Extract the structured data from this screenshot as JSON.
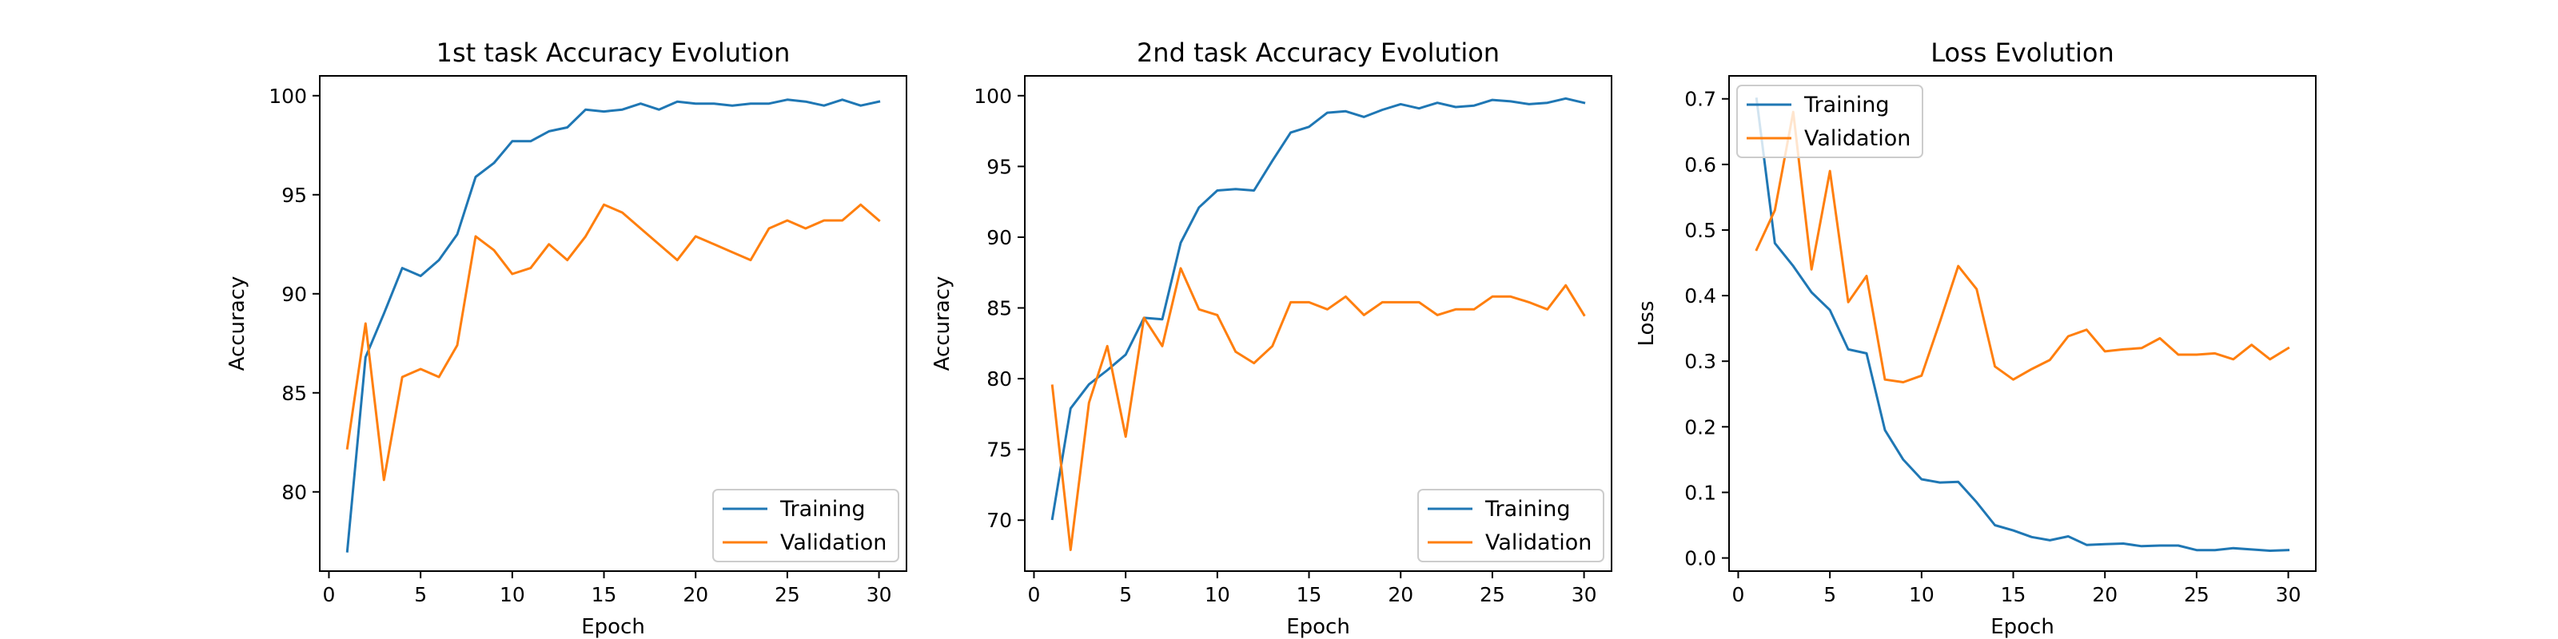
{
  "colors": {
    "training": "#1f77b4",
    "validation": "#ff7f0e"
  },
  "chart_data": [
    {
      "type": "line",
      "title": "1st task Accuracy Evolution",
      "xlabel": "Epoch",
      "ylabel": "Accuracy",
      "xlim": [
        -0.5,
        31.5
      ],
      "ylim": [
        76.0,
        101.0
      ],
      "xticks": [
        0,
        5,
        10,
        15,
        20,
        25,
        30
      ],
      "yticks": [
        80,
        85,
        90,
        95,
        100
      ],
      "legend": "lower right",
      "x": [
        1,
        2,
        3,
        4,
        5,
        6,
        7,
        8,
        9,
        10,
        11,
        12,
        13,
        14,
        15,
        16,
        17,
        18,
        19,
        20,
        21,
        22,
        23,
        24,
        25,
        26,
        27,
        28,
        29,
        30
      ],
      "series": [
        {
          "name": "Training",
          "values": [
            77.0,
            86.8,
            89.0,
            91.3,
            90.9,
            91.7,
            93.0,
            95.9,
            96.6,
            97.7,
            97.7,
            98.2,
            98.4,
            99.3,
            99.2,
            99.3,
            99.6,
            99.3,
            99.7,
            99.6,
            99.6,
            99.5,
            99.6,
            99.6,
            99.8,
            99.7,
            99.5,
            99.8,
            99.5,
            99.7
          ]
        },
        {
          "name": "Validation",
          "values": [
            82.2,
            88.5,
            80.6,
            85.8,
            86.2,
            85.8,
            87.4,
            92.9,
            92.2,
            91.0,
            91.3,
            92.5,
            91.7,
            92.9,
            94.5,
            94.1,
            93.3,
            92.5,
            91.7,
            92.9,
            92.5,
            92.1,
            91.7,
            93.3,
            93.7,
            93.3,
            93.7,
            93.7,
            94.5,
            93.7
          ]
        }
      ]
    },
    {
      "type": "line",
      "title": "2nd task Accuracy Evolution",
      "xlabel": "Epoch",
      "ylabel": "Accuracy",
      "xlim": [
        -0.5,
        31.5
      ],
      "ylim": [
        66.4,
        101.4
      ],
      "xticks": [
        0,
        5,
        10,
        15,
        20,
        25,
        30
      ],
      "yticks": [
        70,
        75,
        80,
        85,
        90,
        95,
        100
      ],
      "legend": "lower right",
      "x": [
        1,
        2,
        3,
        4,
        5,
        6,
        7,
        8,
        9,
        10,
        11,
        12,
        13,
        14,
        15,
        16,
        17,
        18,
        19,
        20,
        21,
        22,
        23,
        24,
        25,
        26,
        27,
        28,
        29,
        30
      ],
      "series": [
        {
          "name": "Training",
          "values": [
            70.1,
            77.9,
            79.6,
            80.6,
            81.7,
            84.3,
            84.2,
            89.6,
            92.1,
            93.3,
            93.4,
            93.3,
            95.4,
            97.4,
            97.8,
            98.8,
            98.9,
            98.5,
            99.0,
            99.4,
            99.1,
            99.5,
            99.2,
            99.3,
            99.7,
            99.6,
            99.4,
            99.5,
            99.8,
            99.5
          ]
        },
        {
          "name": "Validation",
          "values": [
            79.5,
            67.9,
            78.3,
            82.3,
            75.9,
            84.3,
            82.3,
            87.8,
            84.9,
            84.5,
            81.9,
            81.1,
            82.3,
            85.4,
            85.4,
            84.9,
            85.8,
            84.5,
            85.4,
            85.4,
            85.4,
            84.5,
            84.9,
            84.9,
            85.8,
            85.8,
            85.4,
            84.9,
            86.6,
            84.5
          ]
        }
      ]
    },
    {
      "type": "line",
      "title": "Loss Evolution",
      "xlabel": "Epoch",
      "ylabel": "Loss",
      "xlim": [
        -0.5,
        31.5
      ],
      "ylim": [
        -0.02,
        0.735
      ],
      "xticks": [
        0,
        5,
        10,
        15,
        20,
        25,
        30
      ],
      "yticks": [
        0.0,
        0.1,
        0.2,
        0.3,
        0.4,
        0.5,
        0.6,
        0.7
      ],
      "legend": "upper left",
      "x": [
        1,
        2,
        3,
        4,
        5,
        6,
        7,
        8,
        9,
        10,
        11,
        12,
        13,
        14,
        15,
        16,
        17,
        18,
        19,
        20,
        21,
        22,
        23,
        24,
        25,
        26,
        27,
        28,
        29,
        30
      ],
      "series": [
        {
          "name": "Training",
          "values": [
            0.7,
            0.48,
            0.445,
            0.405,
            0.378,
            0.318,
            0.312,
            0.195,
            0.15,
            0.12,
            0.115,
            0.116,
            0.085,
            0.05,
            0.042,
            0.032,
            0.027,
            0.033,
            0.02,
            0.021,
            0.022,
            0.018,
            0.019,
            0.019,
            0.012,
            0.012,
            0.015,
            0.013,
            0.011,
            0.012
          ]
        },
        {
          "name": "Validation",
          "values": [
            0.47,
            0.53,
            0.68,
            0.44,
            0.59,
            0.39,
            0.43,
            0.272,
            0.268,
            0.278,
            0.36,
            0.445,
            0.41,
            0.292,
            0.272,
            0.288,
            0.302,
            0.338,
            0.348,
            0.315,
            0.318,
            0.32,
            0.335,
            0.31,
            0.31,
            0.312,
            0.303,
            0.325,
            0.303,
            0.32
          ]
        }
      ]
    }
  ]
}
